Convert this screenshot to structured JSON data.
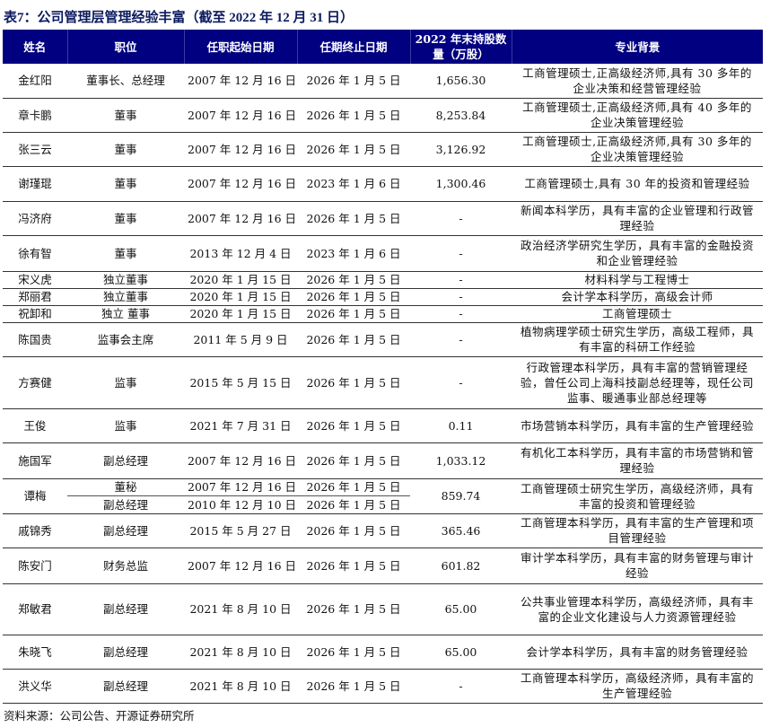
{
  "title": "表7：公司管理层管理经验丰富（截至 2022 年 12 月 31 日）",
  "colors": {
    "header_bg": "#000080",
    "header_text": "#ffffff",
    "title": "#0b1a5e"
  },
  "columns": [
    "姓名",
    "职位",
    "任职起始日期",
    "任期终止日期",
    "2022 年末持股数量（万股）",
    "专业背景"
  ],
  "rows": [
    {
      "name": "金红阳",
      "position": "董事长、总经理",
      "start": "2007 年 12 月 16 日",
      "end": "2026 年 1 月 5 日",
      "shares": "1,656.30",
      "background": "工商管理硕士,正高级经济师,具有 30 多年的企业决策和经营管理经验"
    },
    {
      "name": "章卡鹏",
      "position": "董事",
      "start": "2007 年 12 月 16 日",
      "end": "2026 年 1 月 5 日",
      "shares": "8,253.84",
      "background": "工商管理硕士,正高级经济师,具有 40 多年的企业决策管理经验"
    },
    {
      "name": "张三云",
      "position": "董事",
      "start": "2007 年 12 月 16 日",
      "end": "2026 年 1 月 5 日",
      "shares": "3,126.92",
      "background": "工商管理硕士,正高级经济师,具有 30 多年的企业决策管理经验"
    },
    {
      "name": "谢瑾琨",
      "position": "董事",
      "start": "2007 年 12 月 16 日",
      "end": "2023 年 1 月 6 日",
      "shares": "1,300.46",
      "background": "工商管理硕士,具有 30 年的投资和管理经验"
    },
    {
      "name": "冯济府",
      "position": "董事",
      "start": "2007 年 12 月 16 日",
      "end": "2026 年 1 月 5 日",
      "shares": "-",
      "background": "新闻本科学历，具有丰富的企业管理和行政管理经验"
    },
    {
      "name": "徐有智",
      "position": "董事",
      "start": "2013 年 12 月 4 日",
      "end": "2023 年 1 月 6 日",
      "shares": "-",
      "background": "政治经济学研究生学历，具有丰富的金融投资和企业管理经验"
    },
    {
      "name": "宋义虎",
      "position": "独立董事",
      "start": "2020 年 1 月 15 日",
      "end": "2026 年 1 月 5 日",
      "shares": "-",
      "background": "材料科学与工程博士"
    },
    {
      "name": "郑丽君",
      "position": "独立董事",
      "start": "2020 年 1 月 15 日",
      "end": "2026 年 1 月 5 日",
      "shares": "-",
      "background": "会计学本科学历，高级会计师"
    },
    {
      "name": "祝卸和",
      "position": "独立 董事",
      "start": "2020 年 1 月 15 日",
      "end": "2026 年 1 月 5 日",
      "shares": "-",
      "background": "工商管理硕士"
    },
    {
      "name": "陈国贵",
      "position": "监事会主席",
      "start": "2011 年 5 月 9 日",
      "end": "2026 年 1 月 5 日",
      "shares": "-",
      "background": "植物病理学硕士研究生学历，高级工程师，具有丰富的科研工作经验"
    },
    {
      "name": "方赛健",
      "position": "监事",
      "start": "2015 年 5 月 15 日",
      "end": "2026 年 1 月 5 日",
      "shares": "-",
      "background": "行政管理本科学历，具有丰富的营销管理经验，曾任公司上海科技副总经理等，现任公司监事、暖通事业部总经理等"
    },
    {
      "name": "王俊",
      "position": "监事",
      "start": "2021 年 7 月 31 日",
      "end": "2026 年 1 月 5 日",
      "shares": "0.11",
      "background": "市场营销本科学历，具有丰富的生产管理经验"
    },
    {
      "name": "施国军",
      "position": "副总经理",
      "start": "2007 年 12 月 16 日",
      "end": "2026 年 1 月 5 日",
      "shares": "1,033.12",
      "background": "有机化工本科学历，具有丰富的市场营销和管理经验"
    },
    {
      "name": "谭梅",
      "sub": [
        {
          "position": "董秘",
          "start": "2007 年 12 月 16 日",
          "end": "2026 年 1 月 5 日"
        },
        {
          "position": "副总经理",
          "start": "2010 年 12 月 10 日",
          "end": "2026 年 1 月 5 日"
        }
      ],
      "shares": "859.74",
      "background": "工商管理硕士研究生学历，高级经济师，具有丰富的投资和管理经验"
    },
    {
      "name": "戚锦秀",
      "position": "副总经理",
      "start": "2015 年 5 月 27 日",
      "end": "2026 年 1 月 5 日",
      "shares": "365.46",
      "background": "工商管理本科学历，具有丰富的生产管理和项目管理经验"
    },
    {
      "name": "陈安门",
      "position": "财务总监",
      "start": "2007 年 12 月 16 日",
      "end": "2026 年 1 月 5 日",
      "shares": "601.82",
      "background": "审计学本科学历，具有丰富的财务管理与审计经验"
    },
    {
      "name": "郑敏君",
      "position": "副总经理",
      "start": "2021 年 8 月 10 日",
      "end": "2026 年 1 月 5 日",
      "shares": "65.00",
      "background": "公共事业管理本科学历，高级经济师，具有丰富的企业文化建设与人力资源管理经验"
    },
    {
      "name": "朱晓飞",
      "position": "副总经理",
      "start": "2021 年 8 月 10 日",
      "end": "2026 年 1 月 5 日",
      "shares": "65.00",
      "background": "会计学本科学历，具有丰富的财务管理经验"
    },
    {
      "name": "洪义华",
      "position": "副总经理",
      "start": "2021 年 8 月 10 日",
      "end": "2026 年 1 月 5 日",
      "shares": "-",
      "background": "工商管理本科学历，高级经济师，具有丰富的生产管理经验"
    }
  ],
  "source": "资料来源：公司公告、开源证券研究所"
}
